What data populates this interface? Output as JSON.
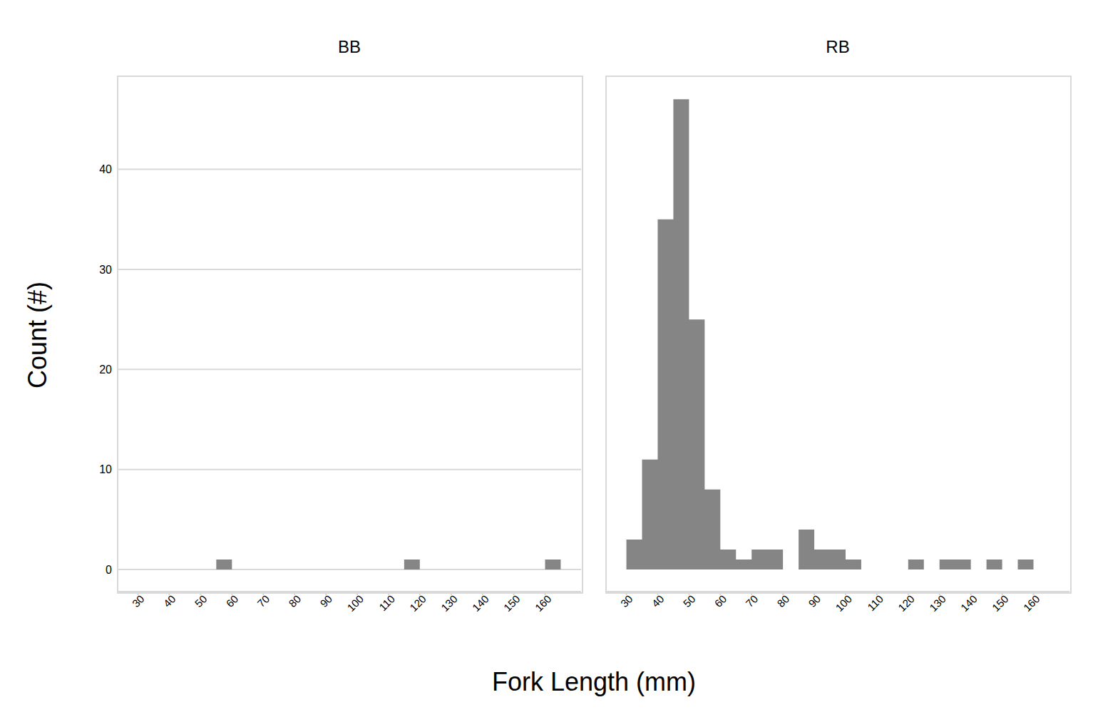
{
  "chart_data": {
    "type": "histogram",
    "x_label": "Fork Length (mm)",
    "y_label": "Count (#)",
    "bins": [
      30,
      35,
      40,
      45,
      50,
      55,
      60,
      65,
      70,
      75,
      80,
      85,
      90,
      95,
      100,
      105,
      110,
      115,
      120,
      125,
      130,
      135,
      140,
      145,
      150,
      155,
      160,
      165
    ],
    "series": [
      {
        "name": "BB",
        "values": [
          0,
          0,
          0,
          0,
          0,
          1,
          0,
          0,
          0,
          0,
          0,
          0,
          0,
          0,
          0,
          0,
          0,
          1,
          0,
          0,
          0,
          0,
          0,
          0,
          0,
          0,
          1
        ]
      },
      {
        "name": "RB",
        "values": [
          3,
          11,
          35,
          47,
          25,
          8,
          2,
          1,
          2,
          2,
          0,
          4,
          2,
          2,
          1,
          0,
          0,
          0,
          1,
          0,
          1,
          1,
          0,
          1,
          0,
          1,
          0
        ]
      }
    ],
    "color": "#858585",
    "xlim": [
      23.5,
      171.5
    ],
    "xticks": [
      30,
      40,
      50,
      60,
      70,
      80,
      90,
      100,
      110,
      120,
      130,
      140,
      150,
      160
    ],
    "ylim": [
      -2.2,
      49.3
    ],
    "yticks": [
      0,
      10,
      20,
      30,
      40
    ],
    "grid": true
  }
}
